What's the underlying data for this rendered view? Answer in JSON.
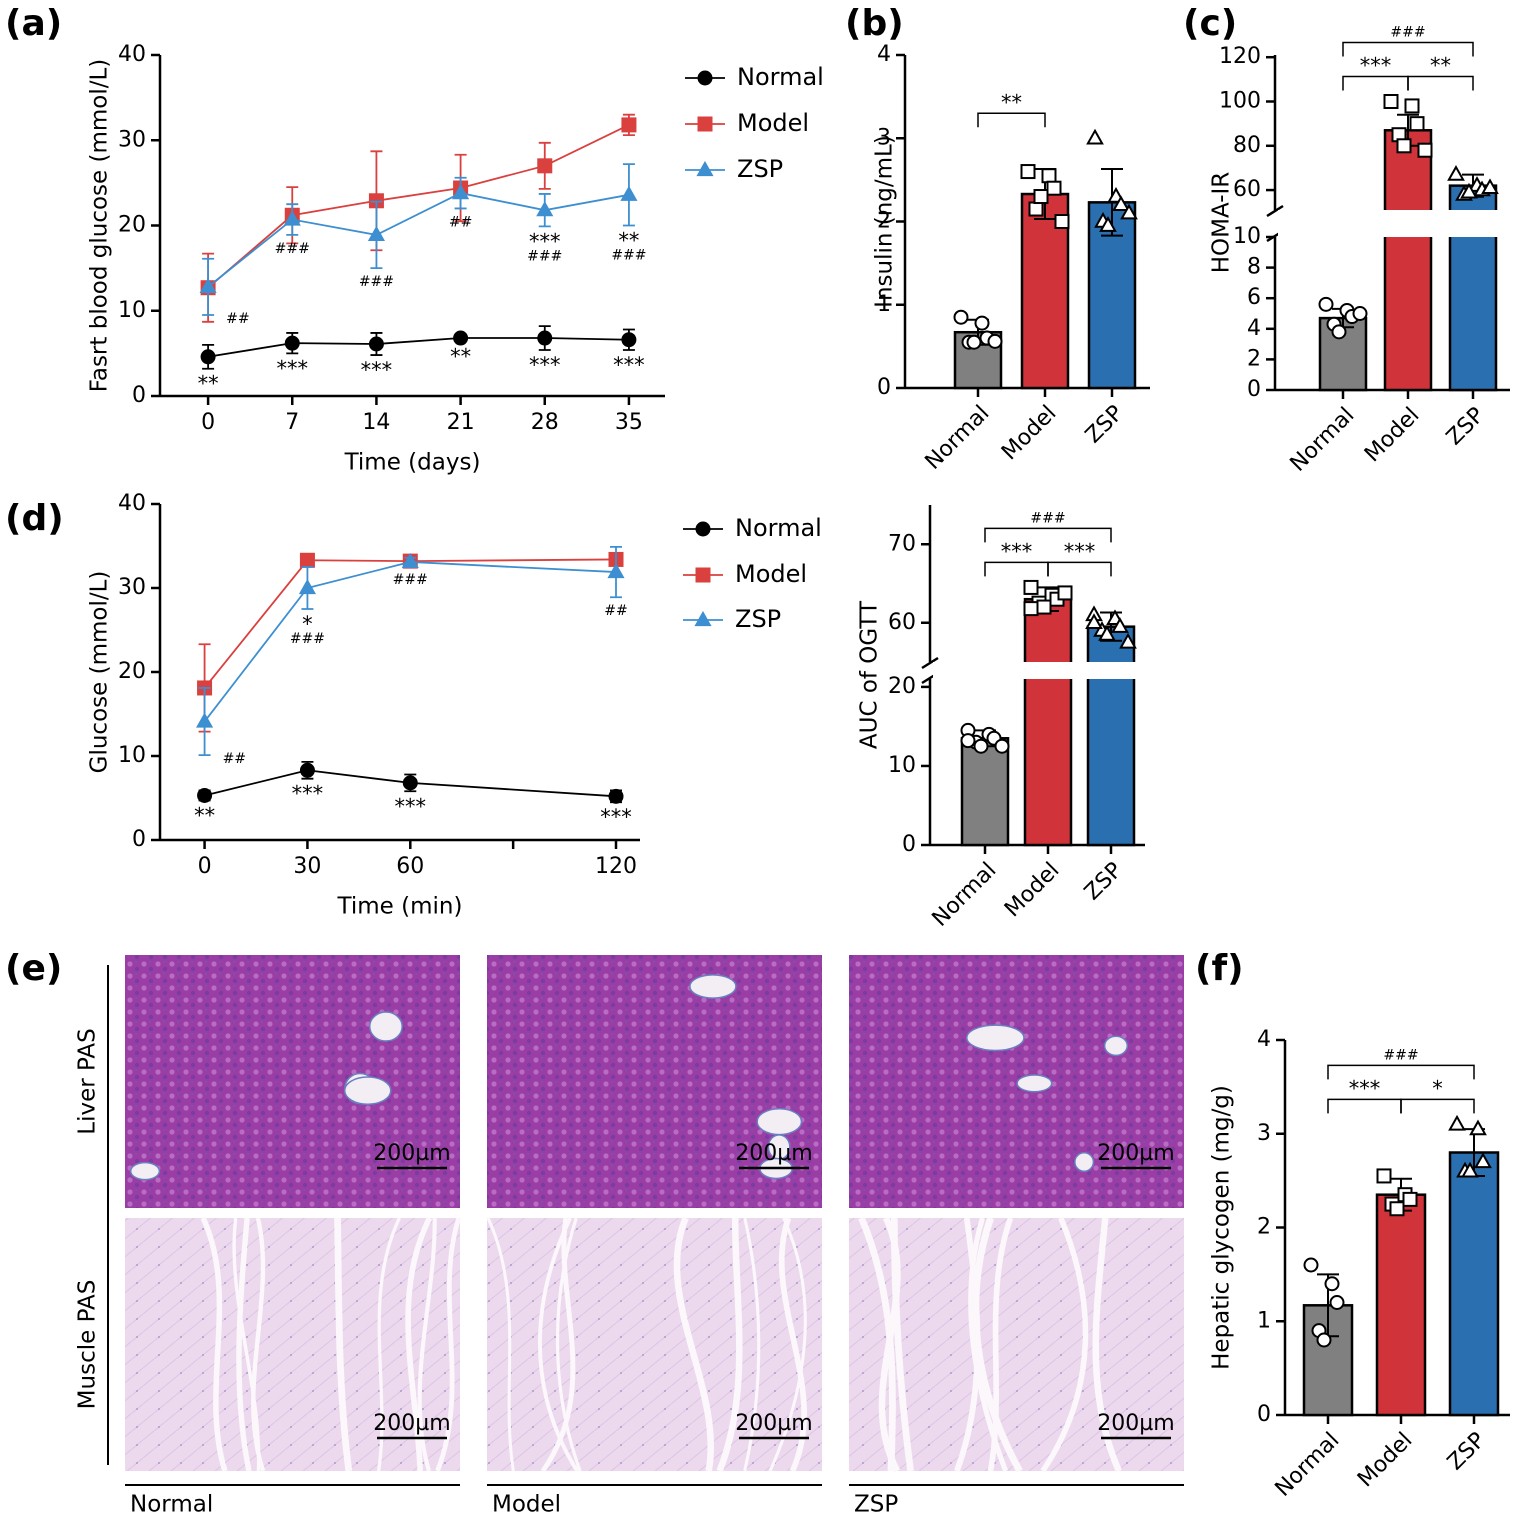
{
  "chart_data": [
    {
      "label": "(a)",
      "type": "line",
      "x": [
        0,
        7,
        14,
        21,
        28,
        35
      ],
      "xlim": [
        -4,
        38
      ],
      "xticks": [
        0,
        7,
        14,
        21,
        28,
        35
      ],
      "ylim": [
        0,
        40
      ],
      "yticks": [
        0,
        10,
        20,
        30,
        40
      ],
      "xlabel": "Time (days)",
      "ylabel": "Fasrt blood glucose (mmol/L)",
      "series": [
        {
          "name": "Normal",
          "color": "#000000",
          "marker": "circle",
          "values": [
            4.6,
            6.2,
            6.1,
            6.8,
            6.8,
            6.6
          ],
          "errors": [
            1.4,
            1.2,
            1.3,
            0.4,
            1.4,
            1.2
          ],
          "sig_stars": [
            "**",
            "***",
            "***",
            "**",
            "***",
            "***"
          ]
        },
        {
          "name": "Model",
          "color": "#d9403e",
          "marker": "square",
          "values": [
            12.7,
            21.2,
            22.9,
            24.4,
            27.0,
            31.8
          ],
          "errors": [
            4.0,
            3.3,
            5.8,
            3.9,
            2.7,
            1.2
          ]
        },
        {
          "name": "ZSP",
          "color": "#3d8fd1",
          "marker": "triangle",
          "values": [
            12.8,
            20.7,
            18.9,
            23.8,
            21.8,
            23.6
          ],
          "errors": [
            3.3,
            1.8,
            3.9,
            1.8,
            1.9,
            3.6
          ],
          "sig_stars": [
            null,
            null,
            null,
            null,
            "***",
            "**"
          ],
          "sig_hashes": [
            "##",
            "###",
            "###",
            "##",
            "###",
            "###"
          ]
        }
      ]
    },
    {
      "label": "(b)",
      "type": "bar",
      "categories": [
        "Normal",
        "Model",
        "ZSP"
      ],
      "values": [
        0.67,
        2.33,
        2.23
      ],
      "errors": [
        0.15,
        0.3,
        0.4
      ],
      "colors": [
        "#808080",
        "#d0343a",
        "#2a6fb0"
      ],
      "markers": [
        "circle",
        "square",
        "triangle"
      ],
      "points": [
        [
          0.85,
          0.78,
          0.6,
          0.55,
          0.55,
          0.56
        ],
        [
          2.6,
          2.55,
          2.4,
          2.15,
          2.3,
          2.0
        ],
        [
          3.0,
          2.3,
          2.2,
          2.0,
          1.95,
          2.1
        ]
      ],
      "ylim": [
        0,
        4
      ],
      "yticks": [
        0,
        1,
        2,
        3,
        4
      ],
      "ylabel": "Insulin (ng/mL)",
      "comparisons": [
        {
          "from": 0,
          "to": 1,
          "text": "**"
        }
      ]
    },
    {
      "label": "(c)",
      "type": "bar",
      "categories": [
        "Normal",
        "Model",
        "ZSP"
      ],
      "values": [
        4.7,
        87,
        62
      ],
      "errors": [
        0.6,
        7,
        5
      ],
      "colors": [
        "#808080",
        "#d0343a",
        "#2a6fb0"
      ],
      "markers": [
        "circle",
        "square",
        "triangle"
      ],
      "points": [
        [
          5.6,
          5.2,
          4.8,
          4.3,
          3.8,
          5.0
        ],
        [
          100,
          98,
          90,
          85,
          80,
          78
        ],
        [
          67,
          62,
          60,
          58,
          59,
          61
        ]
      ],
      "ylim": [
        0,
        121
      ],
      "ybreak": [
        10,
        51
      ],
      "yticks": [
        0,
        2,
        4,
        6,
        8,
        10,
        60,
        80,
        100,
        120
      ],
      "ylabel": "HOMA-IR",
      "comparisons": [
        {
          "from": 0,
          "to": 1,
          "text": "***"
        },
        {
          "from": 1,
          "to": 2,
          "text": "**"
        },
        {
          "from": 0,
          "to": 2,
          "text": "###"
        }
      ]
    },
    {
      "label": "(d)",
      "type": "line",
      "x": [
        0,
        30,
        60,
        120
      ],
      "xlim": [
        -13,
        127
      ],
      "xticks": [
        0,
        30,
        60,
        120
      ],
      "xminorticks": [
        90
      ],
      "ylim": [
        0,
        40
      ],
      "yticks": [
        0,
        10,
        20,
        30,
        40
      ],
      "xlabel": "Time (min)",
      "ylabel": "Glucose (mmol/L)",
      "series": [
        {
          "name": "Normal",
          "color": "#000000",
          "marker": "circle",
          "values": [
            5.3,
            8.3,
            6.8,
            5.2
          ],
          "errors": [
            0.6,
            1.0,
            1.0,
            0.7
          ],
          "sig_stars": [
            "**",
            "***",
            "***",
            "***"
          ]
        },
        {
          "name": "Model",
          "color": "#d9403e",
          "marker": "square",
          "values": [
            18.1,
            33.3,
            33.2,
            33.4
          ],
          "errors": [
            5.2,
            0.3,
            0.3,
            0.3
          ]
        },
        {
          "name": "ZSP",
          "color": "#3d8fd1",
          "marker": "triangle",
          "values": [
            14.1,
            30.0,
            33.1,
            31.9
          ],
          "errors": [
            4.0,
            2.5,
            0.5,
            3.0
          ],
          "sig_stars": [
            null,
            "*",
            null,
            null
          ],
          "sig_hashes": [
            "##",
            "###",
            "###",
            "##"
          ]
        }
      ]
    },
    {
      "type": "bar",
      "categories": [
        "Normal",
        "Model",
        "ZSP"
      ],
      "values": [
        13.5,
        63,
        59.5
      ],
      "errors": [
        1.0,
        1.5,
        1.8
      ],
      "colors": [
        "#808080",
        "#d0343a",
        "#2a6fb0"
      ],
      "markers": [
        "circle",
        "square",
        "triangle"
      ],
      "points": [
        [
          14.5,
          14,
          13.5,
          13,
          12.5,
          12.5,
          13.2
        ],
        [
          64.5,
          63.5,
          63,
          62.5,
          62,
          63.8,
          61.8
        ],
        [
          61,
          60.5,
          59.5,
          59,
          58.5,
          57.5,
          60
        ]
      ],
      "ylim": [
        0,
        75
      ],
      "ybreak": [
        21,
        55
      ],
      "yticks": [
        0,
        10,
        20,
        60,
        70
      ],
      "ylabel": "AUC of OGTT",
      "comparisons": [
        {
          "from": 0,
          "to": 1,
          "text": "***"
        },
        {
          "from": 1,
          "to": 2,
          "text": "***"
        },
        {
          "from": 0,
          "to": 2,
          "text": "###"
        }
      ]
    },
    {
      "label": "(f)",
      "type": "bar",
      "categories": [
        "Normal",
        "Model",
        "ZSP"
      ],
      "values": [
        1.17,
        2.35,
        2.8
      ],
      "errors": [
        0.33,
        0.17,
        0.25
      ],
      "colors": [
        "#808080",
        "#d0343a",
        "#2a6fb0"
      ],
      "markers": [
        "circle",
        "square",
        "triangle"
      ],
      "points": [
        [
          1.6,
          1.4,
          1.2,
          0.9,
          0.8
        ],
        [
          2.55,
          2.35,
          2.3,
          2.25,
          2.2
        ],
        [
          3.1,
          3.05,
          2.7,
          2.6,
          2.6
        ]
      ],
      "ylim": [
        0,
        4
      ],
      "yticks": [
        0,
        1,
        2,
        3,
        4
      ],
      "ylabel": "Hepatic glycogen (mg/g)",
      "comparisons": [
        {
          "from": 0,
          "to": 1,
          "text": "***"
        },
        {
          "from": 1,
          "to": 2,
          "text": "*"
        },
        {
          "from": 0,
          "to": 2,
          "text": "###"
        }
      ]
    }
  ],
  "histology": {
    "label": "(e)",
    "rows": [
      "Liver PAS",
      "Muscle PAS"
    ],
    "columns": [
      "Normal",
      "Model",
      "ZSP"
    ],
    "scale_bar": "200µm"
  }
}
